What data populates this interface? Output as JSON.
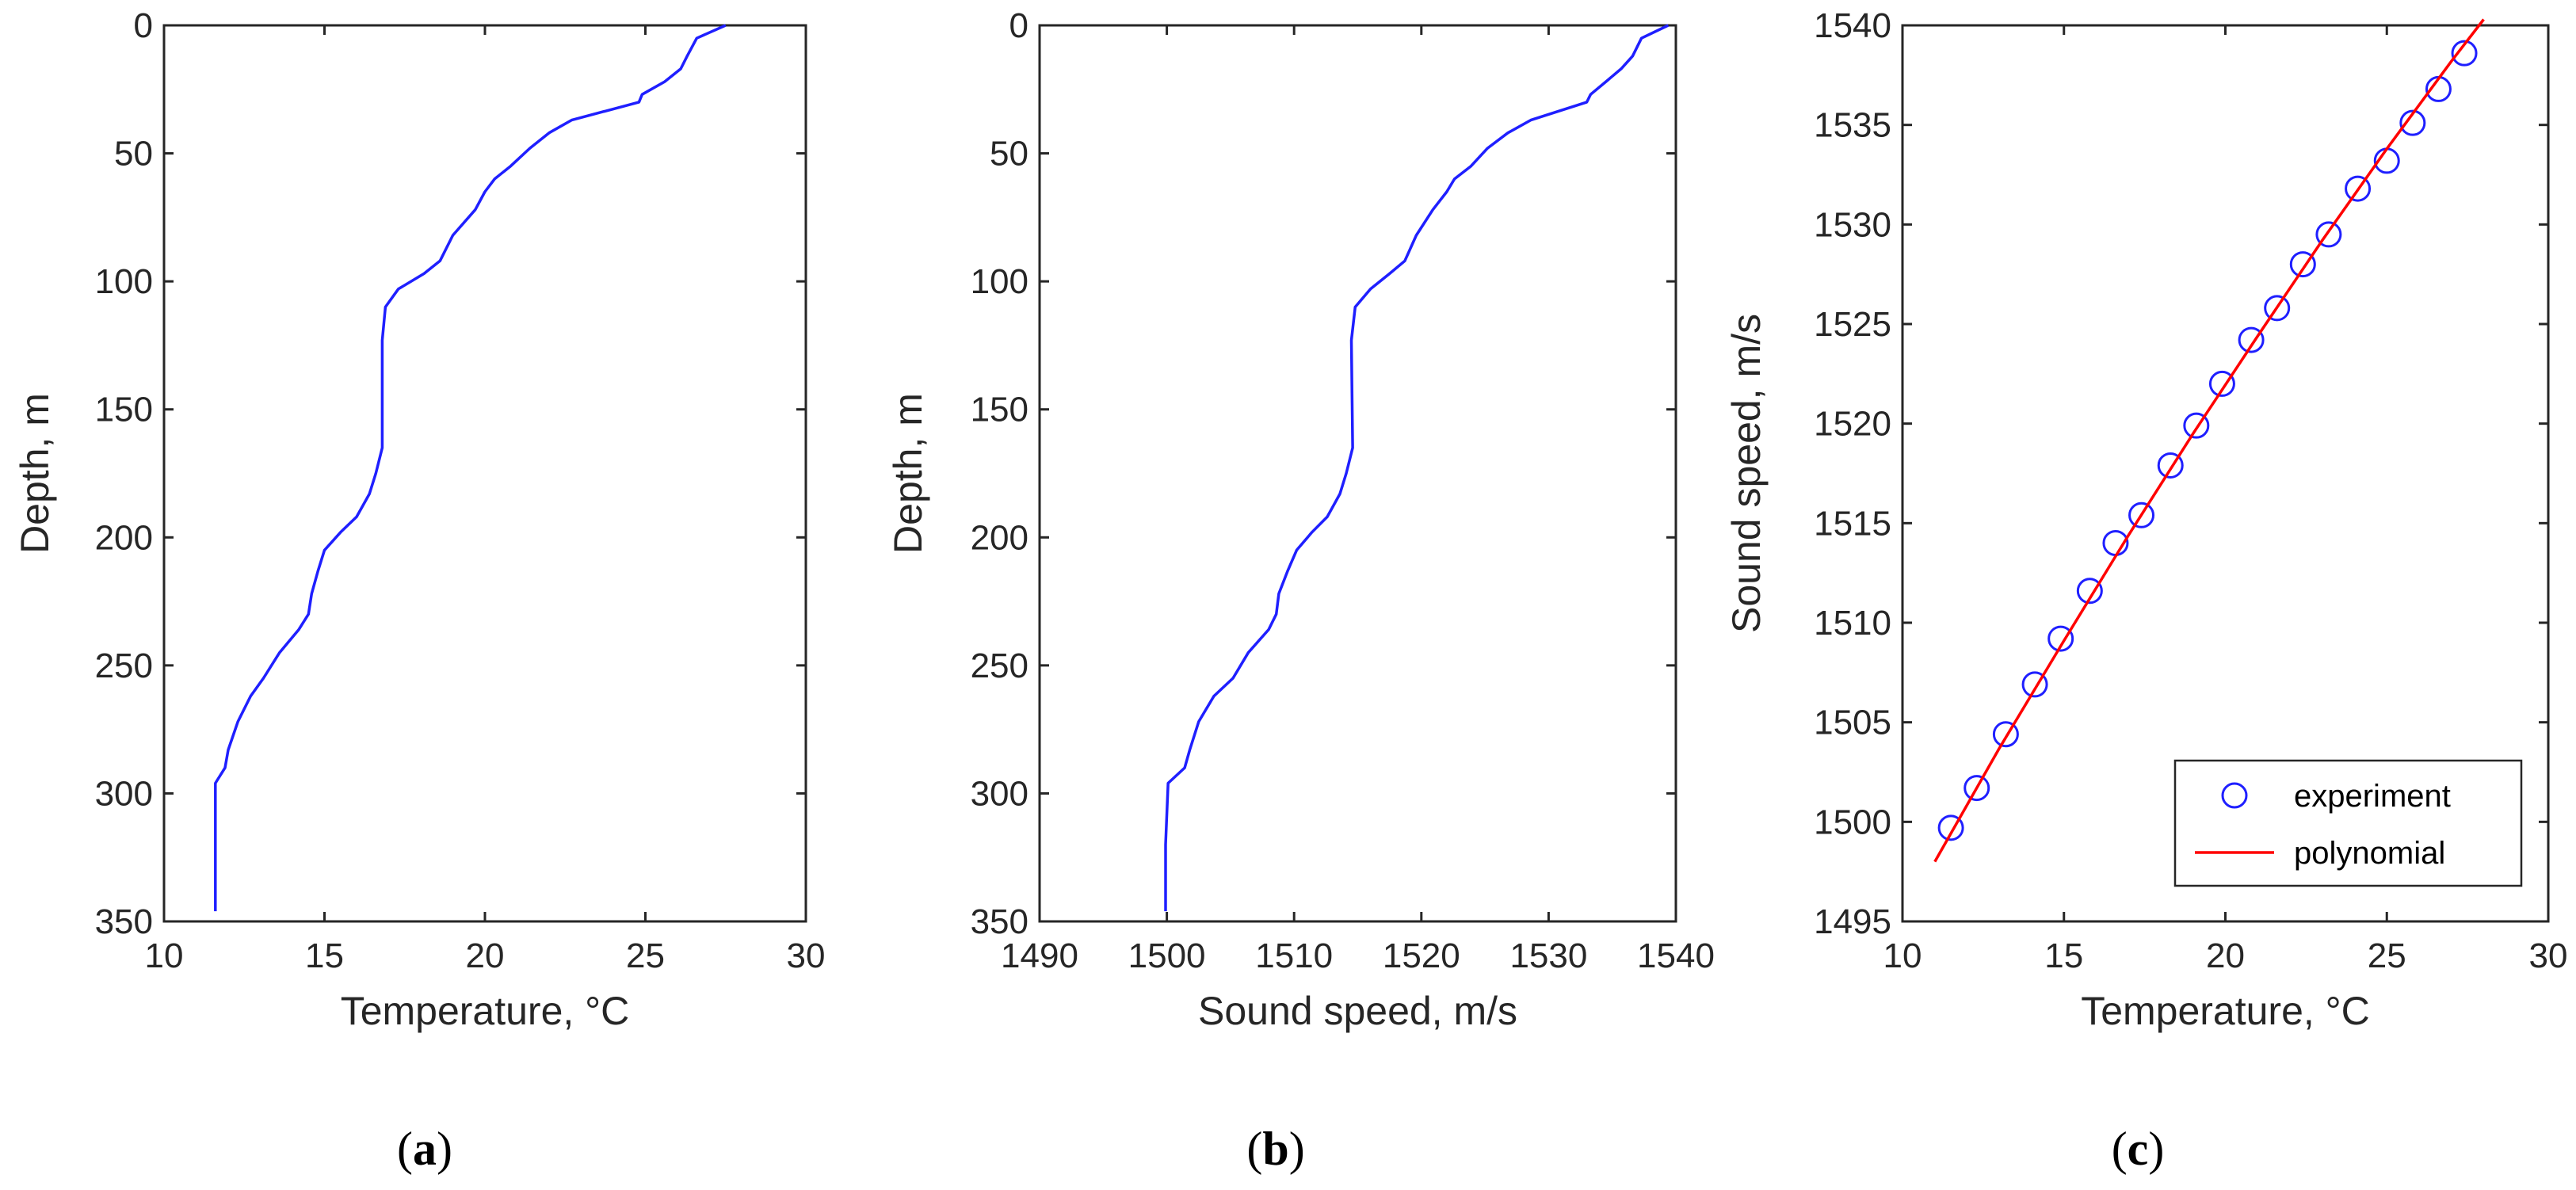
{
  "chart_data": [
    {
      "type": "line",
      "xlabel": "Temperature, °C",
      "ylabel": "Depth, m",
      "xlim": [
        10,
        30
      ],
      "ylim": [
        0,
        350
      ],
      "y_reversed": true,
      "xticks": [
        10,
        15,
        20,
        25,
        30
      ],
      "yticks": [
        0,
        50,
        100,
        150,
        200,
        250,
        300,
        350
      ],
      "grid": false,
      "caption": {
        "open": "(",
        "letter": "a",
        "close": ")"
      },
      "series": [
        {
          "color": "#1f1fff",
          "x": [
            27.5,
            26.6,
            26.3,
            26.1,
            25.6,
            24.9,
            24.8,
            22.7,
            22.0,
            21.4,
            20.8,
            20.3,
            20.0,
            19.7,
            19.0,
            18.6,
            18.1,
            17.3,
            16.9,
            16.8,
            16.8,
            16.6,
            16.4,
            16.0,
            15.5,
            15.0,
            14.8,
            14.6,
            14.5,
            14.2,
            13.6,
            13.1,
            12.7,
            12.3,
            12.0,
            11.9,
            11.6,
            11.6,
            11.6
          ],
          "y": [
            0,
            5,
            12,
            17,
            22,
            27,
            30,
            37,
            42,
            48,
            55,
            60,
            65,
            72,
            82,
            92,
            97,
            103,
            110,
            123,
            165,
            175,
            183,
            192,
            198,
            205,
            213,
            222,
            230,
            236,
            245,
            255,
            262,
            272,
            283,
            290,
            296,
            320,
            346
          ]
        }
      ]
    },
    {
      "type": "line",
      "xlabel": "Sound speed, m/s",
      "ylabel": "Depth, m",
      "xlim": [
        1490,
        1540
      ],
      "ylim": [
        0,
        350
      ],
      "y_reversed": true,
      "xticks": [
        1490,
        1500,
        1510,
        1520,
        1530,
        1540
      ],
      "yticks": [
        0,
        50,
        100,
        150,
        200,
        250,
        300,
        350
      ],
      "grid": false,
      "caption": {
        "open": "(",
        "letter": "b",
        "close": ")"
      },
      "series": [
        {
          "color": "#1f1fff",
          "x": [
            1539.4,
            1537.3,
            1536.6,
            1535.7,
            1534.5,
            1533.3,
            1533.0,
            1528.6,
            1526.8,
            1525.2,
            1523.9,
            1522.6,
            1522.0,
            1520.9,
            1519.6,
            1518.7,
            1517.5,
            1516.0,
            1514.8,
            1514.5,
            1514.6,
            1514.1,
            1513.6,
            1512.6,
            1511.4,
            1510.2,
            1509.5,
            1508.8,
            1508.6,
            1508.0,
            1506.4,
            1505.2,
            1503.7,
            1502.5,
            1501.8,
            1501.4,
            1500.1,
            1499.9,
            1499.9
          ],
          "y": [
            0,
            5,
            12,
            17,
            22,
            27,
            30,
            37,
            42,
            48,
            55,
            60,
            65,
            72,
            82,
            92,
            97,
            103,
            110,
            123,
            165,
            175,
            183,
            192,
            198,
            205,
            213,
            222,
            230,
            236,
            245,
            255,
            262,
            272,
            283,
            290,
            296,
            320,
            346
          ]
        }
      ]
    },
    {
      "type": "scatter",
      "xlabel": "Temperature, °C",
      "ylabel": "Sound speed, m/s",
      "xlim": [
        10,
        30
      ],
      "ylim": [
        1495,
        1540
      ],
      "y_reversed": false,
      "xticks": [
        10,
        15,
        20,
        25,
        30
      ],
      "yticks": [
        1495,
        1500,
        1505,
        1510,
        1515,
        1520,
        1525,
        1530,
        1535,
        1540
      ],
      "grid": false,
      "legend_position": "bottom-right",
      "caption": {
        "open": "(",
        "letter": "c",
        "close": ")"
      },
      "series": [
        {
          "name": "experiment",
          "marker": "circle",
          "color": "#1f1fff",
          "x": [
            11.5,
            12.3,
            13.2,
            14.1,
            14.9,
            15.8,
            16.6,
            17.4,
            18.3,
            19.1,
            19.9,
            20.8,
            21.6,
            22.4,
            23.2,
            24.1,
            25.0,
            25.8,
            26.6,
            27.4
          ],
          "y": [
            1499.7,
            1501.7,
            1504.4,
            1506.9,
            1509.2,
            1511.6,
            1514.0,
            1515.4,
            1517.9,
            1519.9,
            1522.0,
            1524.2,
            1525.8,
            1528.0,
            1529.5,
            1531.8,
            1533.2,
            1535.1,
            1536.8,
            1538.6
          ]
        },
        {
          "name": "polynomial",
          "marker": "none",
          "color": "#ff0000",
          "x": [
            11.0,
            13.0,
            15.0,
            17.0,
            19.0,
            21.0,
            23.0,
            25.0,
            27.0,
            28.0
          ],
          "y": [
            1498.0,
            1503.7,
            1509.1,
            1514.4,
            1519.5,
            1524.4,
            1529.2,
            1533.8,
            1538.2,
            1540.3
          ]
        }
      ]
    }
  ]
}
